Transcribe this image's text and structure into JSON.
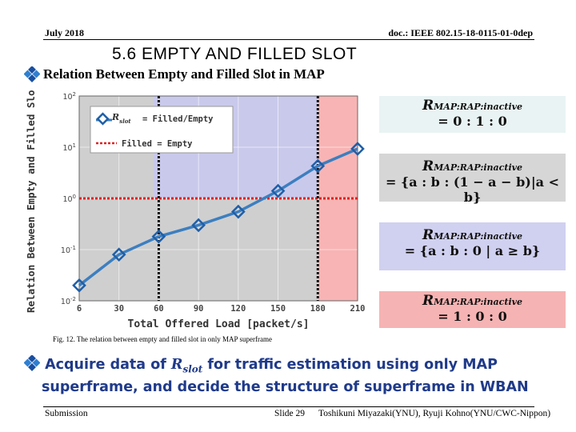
{
  "header": {
    "left": "July 2018",
    "right": "doc.: IEEE 802.15-18-0115-01-0dep"
  },
  "title": "5.6   EMPTY AND FILLED SLOT",
  "bullet1": "Relation Between Empty and Filled Slot in MAP",
  "chart_data": {
    "type": "line",
    "ylabel": "Relation Between Empty and Filled Slot",
    "xlabel": "Total Offered Load [packet/s]",
    "x_ticks": [
      "6",
      "30",
      "60",
      "90",
      "120",
      "150",
      "180",
      "210"
    ],
    "y_ticks": [
      "10-2",
      "10-1",
      "100",
      "101",
      "102"
    ],
    "yscale": "log",
    "ylim": [
      0.01,
      100
    ],
    "series": [
      {
        "name": "Filled/Empty",
        "x": [
          6,
          30,
          60,
          90,
          120,
          150,
          180,
          210
        ],
        "y": [
          0.02,
          0.08,
          0.18,
          0.3,
          0.55,
          1.4,
          4.3,
          9.3
        ]
      }
    ],
    "reference_line": {
      "name": "Filled = Empty",
      "y": 1
    },
    "vertical_markers": [
      60,
      180
    ],
    "legend": {
      "marker_symbol": "R",
      "marker_subscript": "slot",
      "series_label": "= Filled/Empty",
      "line_label": "Filled = Empty"
    },
    "regions": [
      {
        "color": "#c9c9ec",
        "label": "blue region"
      },
      {
        "color": "#f8b4b4",
        "label": "red region"
      },
      {
        "color": "#cfcfcf",
        "label": "gray region"
      }
    ]
  },
  "formulas": [
    {
      "sym": "R",
      "sub": "MAP:RAP:inactive",
      "eq": "= 0 : 1 : 0",
      "bg": "#e9f3f3"
    },
    {
      "sym": "R",
      "sub": "MAP:RAP:inactive",
      "eq": "= {a : b : (1 − a − b)|a < b}",
      "bg": "#d6d6d6"
    },
    {
      "sym": "R",
      "sub": "MAP:RAP:inactive",
      "eq": "= {a : b : 0 | a ≥ b}",
      "bg": "#d0d0f0"
    },
    {
      "sym": "R",
      "sub": "MAP:RAP:inactive",
      "eq": "= 1 : 0 : 0",
      "bg": "#f6b3b3"
    }
  ],
  "caption": "Fig. 12. The relation between empty and filled slot in only MAP superframe",
  "bullet2": {
    "part1": "Acquire data of ",
    "sym": "R",
    "sub": "slot",
    "part2": " for traffic estimation using only MAP",
    "line2": "superframe, and decide the structure of superframe in WBAN"
  },
  "footer": {
    "left": "Submission",
    "slide": "Slide 29",
    "right": "Toshikuni Miyazaki(YNU), Ryuji Kohno(YNU/CWC-Nippon)"
  }
}
